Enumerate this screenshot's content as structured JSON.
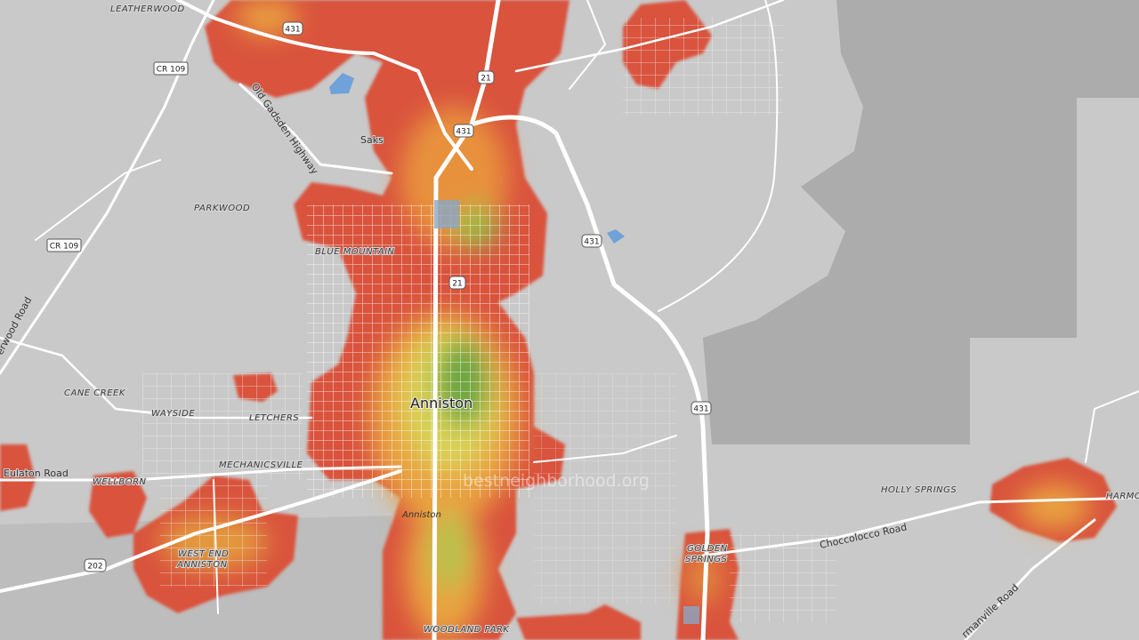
{
  "places": [
    "LEATHERWOOD",
    "PARKWOOD",
    "BLUE MOUNTAIN",
    "CANE CREEK",
    "WAYSIDE",
    "LETCHERS",
    "MECHANICSVILLE",
    "WELLBORN",
    "WEST END",
    "ANNISTON",
    "HOLLY SPRINGS",
    "GOLDEN",
    "SPRINGS",
    "WOODLAND PARK",
    "HARMO"
  ],
  "city": "Anniston",
  "city_small": "Anniston",
  "town": "Saks",
  "roads": [
    "Old Gadsden Highway",
    "Eulaton Road",
    "Choccolocco Road",
    "rmanville Road",
    "erwood Road"
  ],
  "shields": [
    "431",
    "431",
    "431",
    "431",
    "CR 109",
    "CR 109",
    "21",
    "21",
    "202"
  ],
  "watermark": "bestneighborhood.org"
}
